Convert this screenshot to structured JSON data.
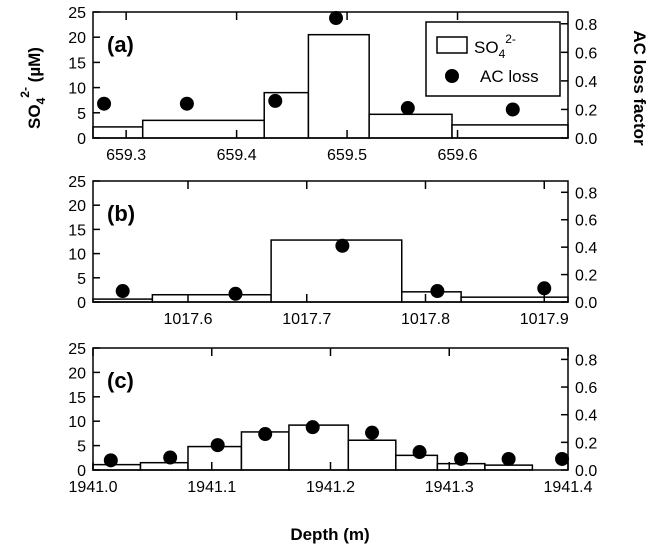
{
  "figure": {
    "xlabel": "Depth (m)",
    "ylabel_left": "SO",
    "ylabel_left_sub": "4",
    "ylabel_left_sup": "2-",
    "ylabel_left_unit": " (µM)",
    "ylabel_right": "AC loss factor"
  },
  "legend": {
    "bar_label": "SO",
    "bar_label_sub": "4",
    "bar_label_sup": "2-",
    "point_label": "AC loss"
  },
  "colors": {
    "bar_fill": "#ffffff",
    "bar_stroke": "#000000",
    "point_fill": "#000000"
  },
  "chart_data": [
    {
      "panel_label": "(a)",
      "type": "bar",
      "secondary_type": "scatter",
      "xlim": [
        659.27,
        659.7
      ],
      "xticks": [
        659.3,
        659.4,
        659.5,
        659.6
      ],
      "xtick_labels": [
        "659.3",
        "659.4",
        "659.5",
        "659.6"
      ],
      "ylim_left": [
        0,
        25
      ],
      "yticks_left": [
        "0",
        "5",
        "10",
        "15",
        "20",
        "25"
      ],
      "ylim_right": [
        0,
        0.8824
      ],
      "yticks_right": [
        "0.0",
        "0.2",
        "0.4",
        "0.6",
        "0.8"
      ],
      "bars": [
        {
          "x0": 659.27,
          "x1": 659.315,
          "value": 2.2
        },
        {
          "x0": 659.315,
          "x1": 659.425,
          "value": 3.5
        },
        {
          "x0": 659.425,
          "x1": 659.465,
          "value": 9.0
        },
        {
          "x0": 659.465,
          "x1": 659.52,
          "value": 20.5
        },
        {
          "x0": 659.52,
          "x1": 659.595,
          "value": 4.7
        },
        {
          "x0": 659.595,
          "x1": 659.7,
          "value": 2.6
        }
      ],
      "points": [
        {
          "x": 659.28,
          "y": 0.24
        },
        {
          "x": 659.355,
          "y": 0.24
        },
        {
          "x": 659.435,
          "y": 0.26
        },
        {
          "x": 659.49,
          "y": 0.84
        },
        {
          "x": 659.555,
          "y": 0.21
        },
        {
          "x": 659.65,
          "y": 0.2
        }
      ]
    },
    {
      "panel_label": "(b)",
      "type": "bar",
      "secondary_type": "scatter",
      "xlim": [
        1017.52,
        1017.92
      ],
      "xticks": [
        1017.6,
        1017.7,
        1017.8,
        1017.9
      ],
      "xtick_labels": [
        "1017.6",
        "1017.7",
        "1017.8",
        "1017.9"
      ],
      "ylim_left": [
        0,
        25
      ],
      "yticks_left": [
        "0",
        "5",
        "10",
        "15",
        "20",
        "25"
      ],
      "ylim_right": [
        0,
        0.8824
      ],
      "yticks_right": [
        "0.0",
        "0.2",
        "0.4",
        "0.6",
        "0.8"
      ],
      "bars": [
        {
          "x0": 1017.52,
          "x1": 1017.57,
          "value": 0.6
        },
        {
          "x0": 1017.57,
          "x1": 1017.67,
          "value": 1.5
        },
        {
          "x0": 1017.67,
          "x1": 1017.78,
          "value": 12.8
        },
        {
          "x0": 1017.78,
          "x1": 1017.83,
          "value": 2.1
        },
        {
          "x0": 1017.83,
          "x1": 1017.92,
          "value": 1.0
        }
      ],
      "points": [
        {
          "x": 1017.545,
          "y": 0.08
        },
        {
          "x": 1017.64,
          "y": 0.06
        },
        {
          "x": 1017.73,
          "y": 0.41
        },
        {
          "x": 1017.81,
          "y": 0.08
        },
        {
          "x": 1017.9,
          "y": 0.1
        }
      ]
    },
    {
      "panel_label": "(c)",
      "type": "bar",
      "secondary_type": "scatter",
      "xlim": [
        1941.0,
        1941.4
      ],
      "xticks": [
        1941.0,
        1941.1,
        1941.2,
        1941.3,
        1941.4
      ],
      "xtick_labels": [
        "1941.0",
        "1941.1",
        "1941.2",
        "1941.3",
        "1941.4"
      ],
      "ylim_left": [
        0,
        25
      ],
      "yticks_left": [
        "0",
        "5",
        "10",
        "15",
        "20",
        "25"
      ],
      "ylim_right": [
        0,
        0.8824
      ],
      "yticks_right": [
        "0.0",
        "0.2",
        "0.4",
        "0.6",
        "0.8"
      ],
      "bars": [
        {
          "x0": 1941.0,
          "x1": 1941.04,
          "value": 1.1
        },
        {
          "x0": 1941.04,
          "x1": 1941.08,
          "value": 1.5
        },
        {
          "x0": 1941.08,
          "x1": 1941.125,
          "value": 4.8
        },
        {
          "x0": 1941.125,
          "x1": 1941.165,
          "value": 7.8
        },
        {
          "x0": 1941.165,
          "x1": 1941.215,
          "value": 9.2
        },
        {
          "x0": 1941.215,
          "x1": 1941.255,
          "value": 6.1
        },
        {
          "x0": 1941.255,
          "x1": 1941.29,
          "value": 3.0
        },
        {
          "x0": 1941.29,
          "x1": 1941.33,
          "value": 1.3
        },
        {
          "x0": 1941.33,
          "x1": 1941.37,
          "value": 1.0
        }
      ],
      "points": [
        {
          "x": 1941.015,
          "y": 0.07
        },
        {
          "x": 1941.065,
          "y": 0.09
        },
        {
          "x": 1941.105,
          "y": 0.18
        },
        {
          "x": 1941.145,
          "y": 0.26
        },
        {
          "x": 1941.185,
          "y": 0.31
        },
        {
          "x": 1941.235,
          "y": 0.27
        },
        {
          "x": 1941.275,
          "y": 0.13
        },
        {
          "x": 1941.31,
          "y": 0.08
        },
        {
          "x": 1941.35,
          "y": 0.08
        },
        {
          "x": 1941.395,
          "y": 0.08
        }
      ]
    }
  ]
}
